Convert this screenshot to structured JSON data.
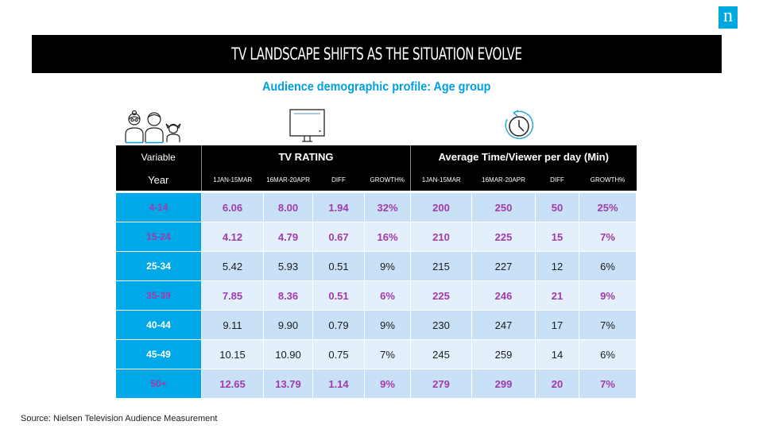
{
  "logo": {
    "letter": "n",
    "color": "#00a8e1"
  },
  "title": "TV LANDSCAPE SHIFTS AS THE SITUATION EVOLVE",
  "subtitle": "Audience demographic profile: Age group",
  "icons": {
    "audience": "family-people-icon",
    "tv": "television-icon",
    "time": "clock-refresh-icon"
  },
  "table": {
    "header": {
      "variable": "Variable",
      "year": "Year",
      "group_tv": "TV RATING",
      "group_time": "Average Time/Viewer per day (Min)",
      "tv_columns": [
        "1JAN-15MAR",
        "16MAR-20APR",
        "DIFF",
        "GROWTH%"
      ],
      "time_columns": [
        "1JAN-15MAR",
        "16MAR-20APR",
        "DIFF",
        "GROWTH%"
      ]
    },
    "rows": [
      {
        "age": "4-14",
        "highlight": true,
        "tv": [
          "6.06",
          "8.00",
          "1.94",
          "32%"
        ],
        "time": [
          "200",
          "250",
          "50",
          "25%"
        ]
      },
      {
        "age": "15-24",
        "highlight": true,
        "tv": [
          "4.12",
          "4.79",
          "0.67",
          "16%"
        ],
        "time": [
          "210",
          "225",
          "15",
          "7%"
        ]
      },
      {
        "age": "25-34",
        "highlight": false,
        "tv": [
          "5.42",
          "5.93",
          "0.51",
          "9%"
        ],
        "time": [
          "215",
          "227",
          "12",
          "6%"
        ]
      },
      {
        "age": "35-39",
        "highlight": true,
        "tv": [
          "7.85",
          "8.36",
          "0.51",
          "6%"
        ],
        "time": [
          "225",
          "246",
          "21",
          "9%"
        ]
      },
      {
        "age": "40-44",
        "highlight": false,
        "tv": [
          "9.11",
          "9.90",
          "0.79",
          "9%"
        ],
        "time": [
          "230",
          "247",
          "17",
          "7%"
        ]
      },
      {
        "age": "45-49",
        "highlight": false,
        "tv": [
          "10.15",
          "10.90",
          "0.75",
          "7%"
        ],
        "time": [
          "245",
          "259",
          "14",
          "6%"
        ]
      },
      {
        "age": "50+",
        "highlight": true,
        "tv": [
          "12.65",
          "13.79",
          "1.14",
          "9%"
        ],
        "time": [
          "279",
          "299",
          "20",
          "7%"
        ]
      }
    ],
    "colors": {
      "age_cell": "#00a8e8",
      "highlight_text": "#a23aa9",
      "band_dark": "#c9e1f7",
      "band_light": "#e3f0fb"
    }
  },
  "source": "Source: Nielsen Television Audience Measurement"
}
